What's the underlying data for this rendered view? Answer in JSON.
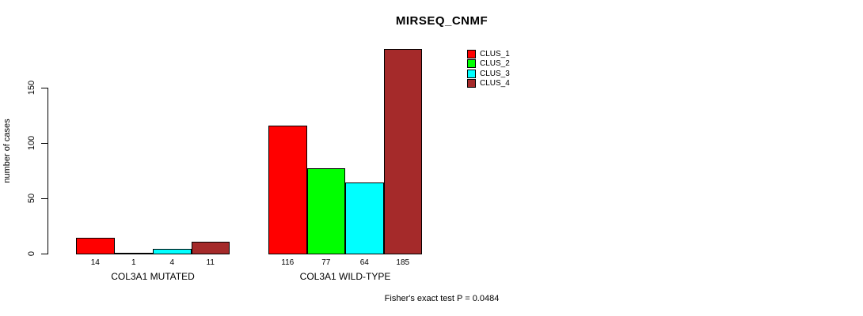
{
  "chart_data": {
    "type": "bar",
    "title": "MIRSEQ_CNMF",
    "ylabel": "number of cases",
    "yticks": [
      0,
      50,
      100,
      150
    ],
    "ylim": [
      0,
      185
    ],
    "grid": false,
    "legend_position": "top-right",
    "series": [
      {
        "name": "CLUS_1",
        "color": "#FF0000"
      },
      {
        "name": "CLUS_2",
        "color": "#00FF00"
      },
      {
        "name": "CLUS_3",
        "color": "#00FFFF"
      },
      {
        "name": "CLUS_4",
        "color": "#A52A2A"
      }
    ],
    "groups": [
      {
        "label": "COL3A1 MUTATED",
        "values": [
          14,
          1,
          4,
          11
        ]
      },
      {
        "label": "COL3A1 WILD-TYPE",
        "values": [
          116,
          77,
          64,
          185
        ]
      }
    ],
    "annotation": "Fisher's exact test P = 0.0484"
  }
}
